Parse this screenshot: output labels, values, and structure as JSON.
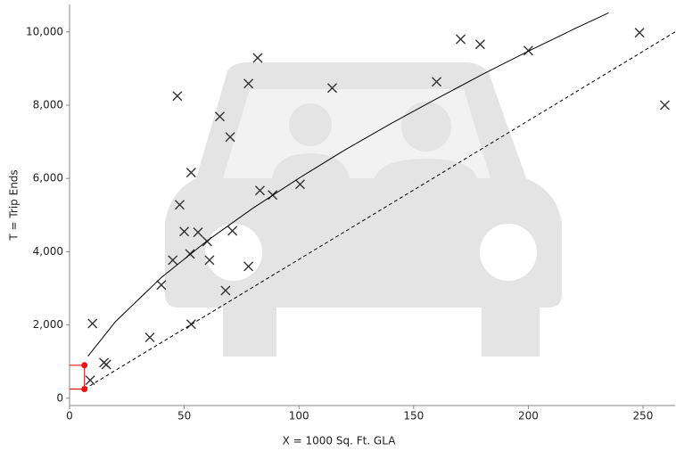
{
  "chart_data": {
    "type": "scatter",
    "xlabel": "X = 1000 Sq. Ft. GLA",
    "ylabel": "T = Trip Ends",
    "xlim": [
      0,
      264
    ],
    "ylim": [
      -200,
      10750
    ],
    "xticks": [
      0,
      50,
      100,
      150,
      200,
      250
    ],
    "yticks": [
      0,
      {
        "value": 2000,
        "label": "2,000"
      },
      {
        "value": 4000,
        "label": "4,000"
      },
      {
        "value": 6000,
        "label": "6,000"
      },
      {
        "value": 8000,
        "label": "8,000"
      },
      {
        "value": 10000,
        "label": "10,000"
      }
    ],
    "series": [
      {
        "type": "scatter",
        "color": "#333333",
        "x": [
          9,
          10,
          15,
          16,
          35,
          40,
          45,
          47,
          48,
          50,
          52.5,
          53,
          53,
          56,
          60,
          61,
          65.5,
          68,
          70,
          71,
          78,
          78,
          82,
          83,
          88.5,
          100.5,
          114.5,
          160,
          170.5,
          179,
          200,
          248.5,
          259.5
        ],
        "values": [
          490,
          2040,
          970,
          920,
          1660,
          3090,
          3770,
          8250,
          5280,
          4550,
          3940,
          6160,
          2020,
          4530,
          4280,
          3770,
          7690,
          2940,
          7130,
          4570,
          8590,
          3600,
          9290,
          5670,
          5550,
          5840,
          8470,
          8640,
          9800,
          9660,
          9490,
          9980,
          8000
        ]
      },
      {
        "type": "line",
        "color": "#000000",
        "dash": false,
        "x": [
          8,
          20,
          40,
          60,
          80,
          100,
          120,
          140,
          160,
          180,
          200,
          220,
          235
        ],
        "values": [
          1146,
          2091,
          3294,
          4298,
          5192,
          6007,
          6777,
          7495,
          8175,
          8840,
          9473,
          10082,
          10520
        ]
      },
      {
        "type": "line",
        "color": "#000000",
        "dash": true,
        "x": [
          6.5,
          264
        ],
        "values": [
          250,
          10000
        ]
      },
      {
        "type": "range",
        "color": "#ee1111",
        "x": [
          6.5,
          6.5
        ],
        "values": [
          900,
          250
        ]
      }
    ]
  }
}
